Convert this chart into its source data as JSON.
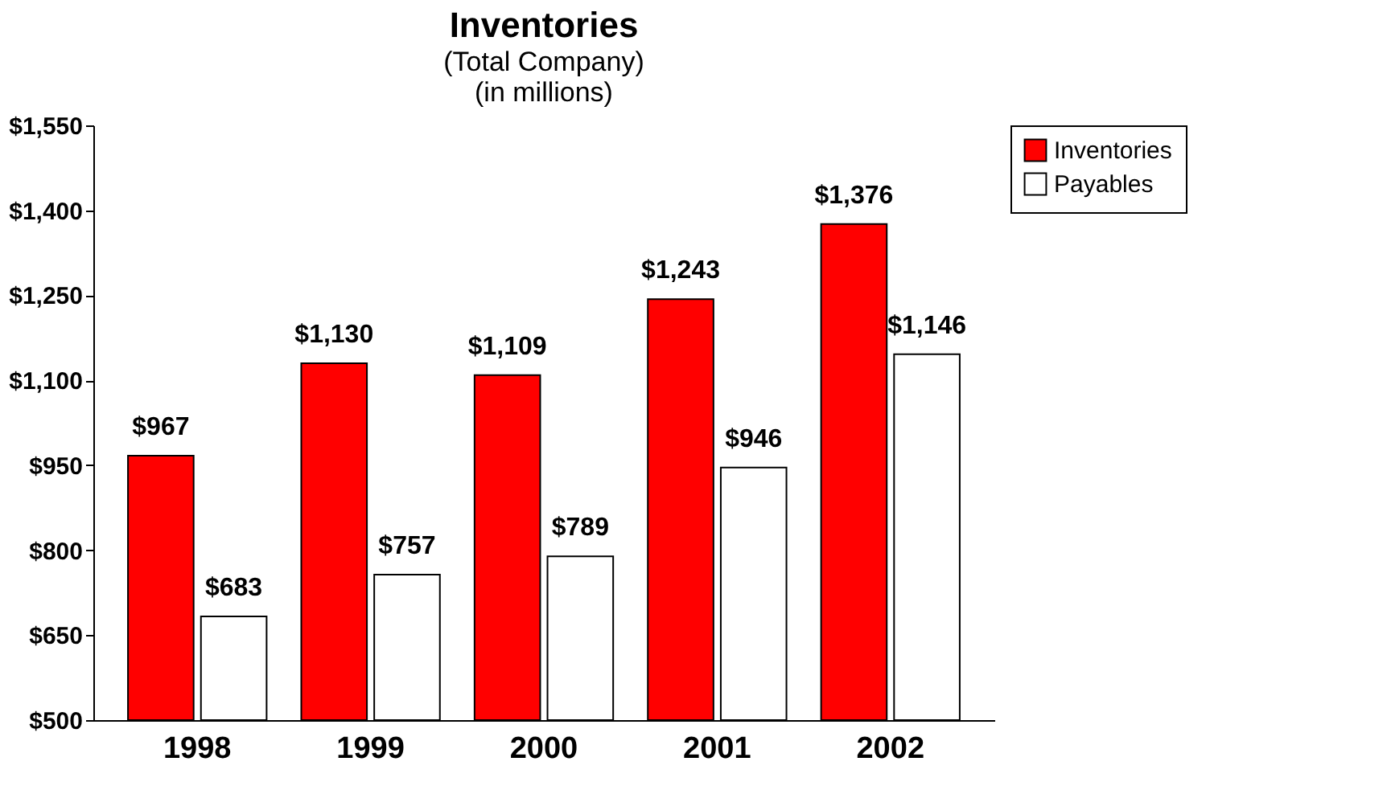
{
  "chart_data": {
    "type": "bar",
    "title": "Inventories",
    "subtitle": "(Total Company)\n(in millions)",
    "categories": [
      "1998",
      "1999",
      "2000",
      "2001",
      "2002"
    ],
    "series": [
      {
        "name": "Inventories",
        "color": "#ff0000",
        "values": [
          967,
          1130,
          1109,
          1243,
          1376
        ],
        "value_labels": [
          "$967",
          "$1,130",
          "$1,109",
          "$1,243",
          "$1,376"
        ]
      },
      {
        "name": "Payables",
        "color": "#ffffff",
        "values": [
          683,
          757,
          789,
          946,
          1146
        ],
        "value_labels": [
          "$683",
          "$757",
          "$789",
          "$946",
          "$1,146"
        ]
      }
    ],
    "ylim": [
      500,
      1550
    ],
    "yticks": [
      {
        "value": 500,
        "label": "$500"
      },
      {
        "value": 650,
        "label": "$650"
      },
      {
        "value": 800,
        "label": "$800"
      },
      {
        "value": 950,
        "label": "$950"
      },
      {
        "value": 1100,
        "label": "$1,100"
      },
      {
        "value": 1250,
        "label": "$1,250"
      },
      {
        "value": 1400,
        "label": "$1,400"
      },
      {
        "value": 1550,
        "label": "$1,550"
      }
    ],
    "grid": false,
    "legend": "right"
  }
}
